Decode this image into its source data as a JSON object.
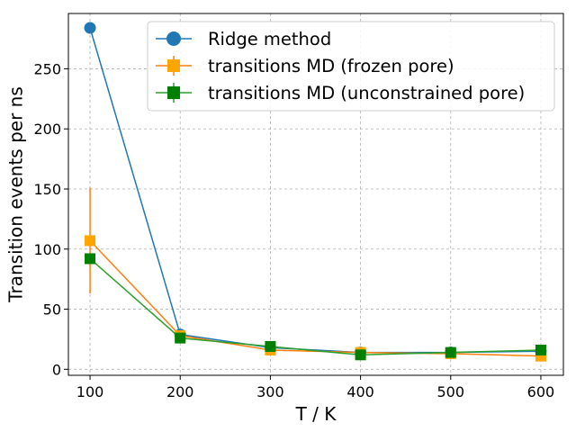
{
  "chart_data": {
    "type": "line",
    "title": "",
    "xlabel": "T / K",
    "ylabel": "Transition events per ns",
    "xlim": [
      76,
      625
    ],
    "ylim": [
      -5,
      296
    ],
    "xticks": [
      100,
      200,
      300,
      400,
      500,
      600
    ],
    "yticks": [
      0,
      50,
      100,
      150,
      200,
      250
    ],
    "grid": true,
    "legend_position": "top-right",
    "series": [
      {
        "name": "Ridge method",
        "color": "#1f77b4",
        "marker": "circle",
        "x": [
          100,
          200,
          300,
          400,
          500,
          600
        ],
        "y": [
          284,
          29,
          18,
          14,
          14,
          15
        ]
      },
      {
        "name": "transitions MD (frozen pore)",
        "color": "#ff7f0e",
        "marker_color": "#ffa500",
        "marker": "square",
        "x": [
          100,
          200,
          300,
          400,
          500,
          600
        ],
        "y": [
          107,
          28,
          16,
          14,
          13,
          11
        ],
        "yerr": [
          44,
          2,
          2,
          2,
          2,
          2
        ]
      },
      {
        "name": "transitions MD (unconstrained pore)",
        "color": "#2ca02c",
        "marker_color": "#008000",
        "marker": "square",
        "x": [
          100,
          200,
          300,
          400,
          500,
          600
        ],
        "y": [
          92,
          26,
          19,
          12,
          14,
          16
        ],
        "yerr": [
          2,
          2,
          2,
          2,
          2,
          2
        ]
      }
    ]
  }
}
